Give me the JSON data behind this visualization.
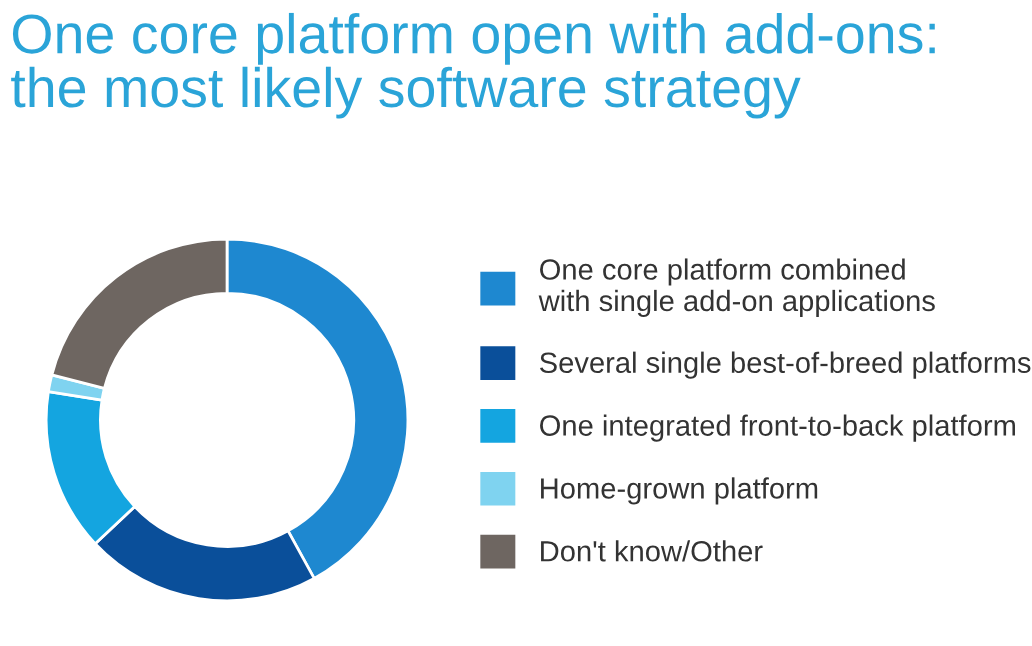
{
  "chart_data": {
    "type": "donut",
    "title": "One core platform open with add-ons:\nthe most likely software strategy",
    "categories": [
      "One core platform combined\nwith single add-on applications",
      "Several single best-of-breed platforms",
      "One integrated front-to-back platform",
      "Home-grown platform",
      "Don't know/Other"
    ],
    "values": [
      42,
      21,
      14.5,
      1.5,
      21
    ],
    "colors": [
      "#1e88d0",
      "#0a4f9a",
      "#14a5e0",
      "#7fd3f0",
      "#6e6661"
    ],
    "legend": "right"
  }
}
